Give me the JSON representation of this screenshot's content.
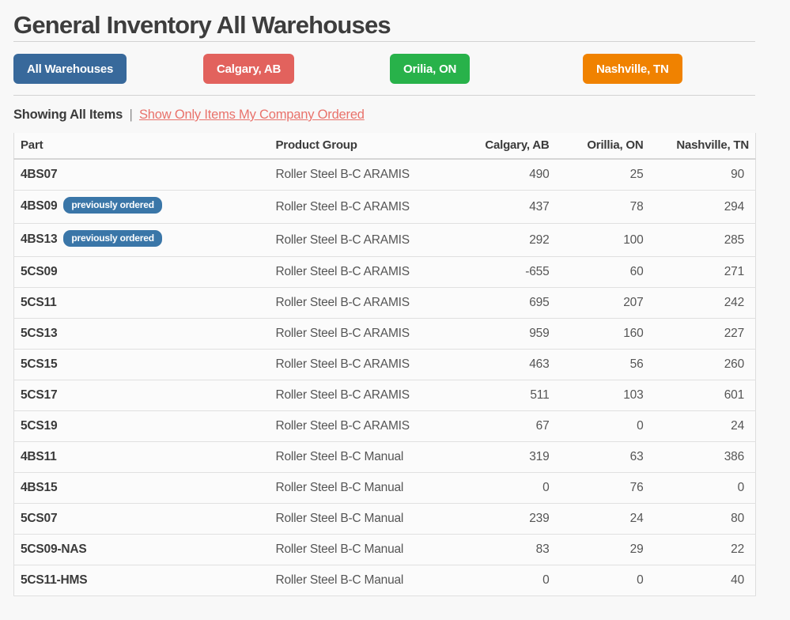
{
  "page": {
    "title": "General Inventory All Warehouses",
    "background": "#f8f8f8"
  },
  "warehouse_buttons": [
    {
      "id": "all-warehouses",
      "label": "All Warehouses",
      "color": "#38699b"
    },
    {
      "id": "calgary-ab",
      "label": "Calgary, AB",
      "color": "#e2625d"
    },
    {
      "id": "orilia-on",
      "label": "Orilia, ON",
      "color": "#28b24a"
    },
    {
      "id": "nashville-tn",
      "label": "Nashville, TN",
      "color": "#f08200"
    }
  ],
  "filter_bar": {
    "current": "Showing All Items",
    "separator": "|",
    "link_label": "Show Only Items My Company Ordered",
    "link_color": "#e9726b"
  },
  "table": {
    "columns": [
      "Part",
      "Product Group",
      "Calgary, AB",
      "Orillia, ON",
      "Nashville, TN"
    ],
    "badge_label": "previously ordered",
    "badge_color": "#3a76a8",
    "rows": [
      {
        "part": "4BS07",
        "previously_ordered": false,
        "group": "Roller Steel B-C ARAMIS",
        "calgary": "490",
        "orillia": "25",
        "nashville": "90"
      },
      {
        "part": "4BS09",
        "previously_ordered": true,
        "group": "Roller Steel B-C ARAMIS",
        "calgary": "437",
        "orillia": "78",
        "nashville": "294"
      },
      {
        "part": "4BS13",
        "previously_ordered": true,
        "group": "Roller Steel B-C ARAMIS",
        "calgary": "292",
        "orillia": "100",
        "nashville": "285"
      },
      {
        "part": "5CS09",
        "previously_ordered": false,
        "group": "Roller Steel B-C ARAMIS",
        "calgary": "-655",
        "orillia": "60",
        "nashville": "271"
      },
      {
        "part": "5CS11",
        "previously_ordered": false,
        "group": "Roller Steel B-C ARAMIS",
        "calgary": "695",
        "orillia": "207",
        "nashville": "242"
      },
      {
        "part": "5CS13",
        "previously_ordered": false,
        "group": "Roller Steel B-C ARAMIS",
        "calgary": "959",
        "orillia": "160",
        "nashville": "227"
      },
      {
        "part": "5CS15",
        "previously_ordered": false,
        "group": "Roller Steel B-C ARAMIS",
        "calgary": "463",
        "orillia": "56",
        "nashville": "260"
      },
      {
        "part": "5CS17",
        "previously_ordered": false,
        "group": "Roller Steel B-C ARAMIS",
        "calgary": "511",
        "orillia": "103",
        "nashville": "601"
      },
      {
        "part": "5CS19",
        "previously_ordered": false,
        "group": "Roller Steel B-C ARAMIS",
        "calgary": "67",
        "orillia": "0",
        "nashville": "24"
      },
      {
        "part": "4BS11",
        "previously_ordered": false,
        "group": "Roller Steel B-C Manual",
        "calgary": "319",
        "orillia": "63",
        "nashville": "386"
      },
      {
        "part": "4BS15",
        "previously_ordered": false,
        "group": "Roller Steel B-C Manual",
        "calgary": "0",
        "orillia": "76",
        "nashville": "0"
      },
      {
        "part": "5CS07",
        "previously_ordered": false,
        "group": "Roller Steel B-C Manual",
        "calgary": "239",
        "orillia": "24",
        "nashville": "80"
      },
      {
        "part": "5CS09-NAS",
        "previously_ordered": false,
        "group": "Roller Steel B-C Manual",
        "calgary": "83",
        "orillia": "29",
        "nashville": "22"
      },
      {
        "part": "5CS11-HMS",
        "previously_ordered": false,
        "group": "Roller Steel B-C Manual",
        "calgary": "0",
        "orillia": "0",
        "nashville": "40"
      }
    ]
  }
}
